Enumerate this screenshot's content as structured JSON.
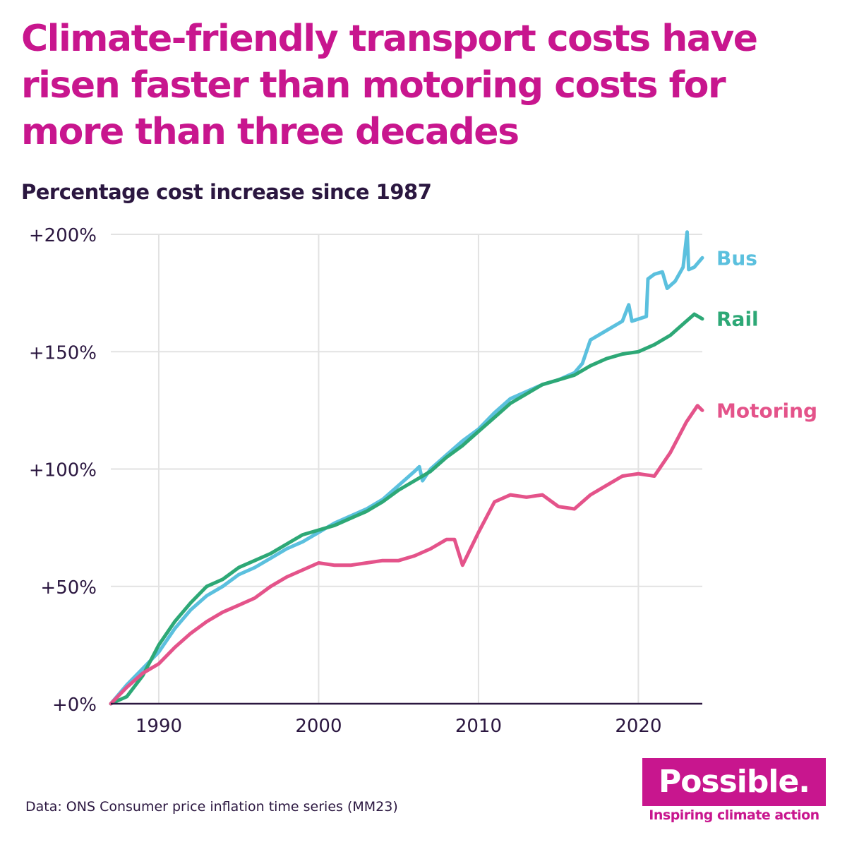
{
  "title": "Climate-friendly transport costs have risen faster than motoring costs for more than three decades",
  "subtitle": "Percentage cost increase since 1987",
  "source": "Data: ONS Consumer price inflation time series (MM23)",
  "logo": {
    "name": "Possible.",
    "tagline": "Inspiring climate action"
  },
  "colors": {
    "title": "#c8168e",
    "text": "#2b1740",
    "grid": "#e2e2e2",
    "bus": "#5bc0de",
    "rail": "#2da876",
    "motoring": "#e4538a"
  },
  "chart_data": {
    "type": "line",
    "title": "Percentage cost increase since 1987",
    "xlabel": "",
    "ylabel": "",
    "xlim": [
      1987,
      2024
    ],
    "ylim": [
      0,
      200
    ],
    "x_ticks": [
      1990,
      2000,
      2010,
      2020
    ],
    "x_tick_labels": [
      "1990",
      "2000",
      "2010",
      "2020"
    ],
    "y_ticks": [
      0,
      50,
      100,
      150,
      200
    ],
    "y_tick_labels": [
      "+0%",
      "+50%",
      "+100%",
      "+150%",
      "+200%"
    ],
    "grid": true,
    "legend": "end-of-line labels",
    "series": [
      {
        "name": "Bus",
        "color": "#5bc0de",
        "points": [
          [
            1987,
            0
          ],
          [
            1988,
            8
          ],
          [
            1989,
            15
          ],
          [
            1990,
            22
          ],
          [
            1991,
            32
          ],
          [
            1992,
            40
          ],
          [
            1993,
            46
          ],
          [
            1994,
            50
          ],
          [
            1995,
            55
          ],
          [
            1996,
            58
          ],
          [
            1997,
            62
          ],
          [
            1998,
            66
          ],
          [
            1999,
            69
          ],
          [
            2000,
            73
          ],
          [
            2001,
            77
          ],
          [
            2002,
            80
          ],
          [
            2003,
            83
          ],
          [
            2004,
            87
          ],
          [
            2005,
            93
          ],
          [
            2006,
            99
          ],
          [
            2006.3,
            101
          ],
          [
            2006.5,
            95
          ],
          [
            2007,
            100
          ],
          [
            2008,
            106
          ],
          [
            2009,
            112
          ],
          [
            2010,
            117
          ],
          [
            2011,
            124
          ],
          [
            2012,
            130
          ],
          [
            2013,
            133
          ],
          [
            2014,
            136
          ],
          [
            2015,
            138
          ],
          [
            2016,
            141
          ],
          [
            2016.5,
            145
          ],
          [
            2017,
            155
          ],
          [
            2018,
            159
          ],
          [
            2019,
            163
          ],
          [
            2019.4,
            170
          ],
          [
            2019.6,
            163
          ],
          [
            2020.5,
            165
          ],
          [
            2020.6,
            181
          ],
          [
            2021,
            183
          ],
          [
            2021.5,
            184
          ],
          [
            2021.8,
            177
          ],
          [
            2022.3,
            180
          ],
          [
            2022.8,
            186
          ],
          [
            2023.05,
            201
          ],
          [
            2023.15,
            185
          ],
          [
            2023.5,
            186
          ],
          [
            2024,
            190
          ]
        ]
      },
      {
        "name": "Rail",
        "color": "#2da876",
        "points": [
          [
            1987,
            0
          ],
          [
            1988,
            3
          ],
          [
            1989,
            12
          ],
          [
            1990,
            25
          ],
          [
            1991,
            35
          ],
          [
            1992,
            43
          ],
          [
            1993,
            50
          ],
          [
            1994,
            53
          ],
          [
            1995,
            58
          ],
          [
            1996,
            61
          ],
          [
            1997,
            64
          ],
          [
            1998,
            68
          ],
          [
            1999,
            72
          ],
          [
            2000,
            74
          ],
          [
            2001,
            76
          ],
          [
            2002,
            79
          ],
          [
            2003,
            82
          ],
          [
            2004,
            86
          ],
          [
            2005,
            91
          ],
          [
            2006,
            95
          ],
          [
            2007,
            99
          ],
          [
            2008,
            105
          ],
          [
            2009,
            110
          ],
          [
            2010,
            116
          ],
          [
            2011,
            122
          ],
          [
            2012,
            128
          ],
          [
            2013,
            132
          ],
          [
            2014,
            136
          ],
          [
            2015,
            138
          ],
          [
            2016,
            140
          ],
          [
            2017,
            144
          ],
          [
            2018,
            147
          ],
          [
            2019,
            149
          ],
          [
            2020,
            150
          ],
          [
            2021,
            153
          ],
          [
            2022,
            157
          ],
          [
            2023,
            163
          ],
          [
            2023.5,
            166
          ],
          [
            2024,
            164
          ]
        ]
      },
      {
        "name": "Motoring",
        "color": "#e4538a",
        "points": [
          [
            1987,
            0
          ],
          [
            1988,
            7
          ],
          [
            1989,
            13
          ],
          [
            1990,
            17
          ],
          [
            1991,
            24
          ],
          [
            1992,
            30
          ],
          [
            1993,
            35
          ],
          [
            1994,
            39
          ],
          [
            1995,
            42
          ],
          [
            1996,
            45
          ],
          [
            1997,
            50
          ],
          [
            1998,
            54
          ],
          [
            1999,
            57
          ],
          [
            2000,
            60
          ],
          [
            2001,
            59
          ],
          [
            2002,
            59
          ],
          [
            2003,
            60
          ],
          [
            2004,
            61
          ],
          [
            2005,
            61
          ],
          [
            2006,
            63
          ],
          [
            2007,
            66
          ],
          [
            2008,
            70
          ],
          [
            2008.5,
            70
          ],
          [
            2009,
            59
          ],
          [
            2009.5,
            66
          ],
          [
            2010,
            73
          ],
          [
            2011,
            86
          ],
          [
            2012,
            89
          ],
          [
            2013,
            88
          ],
          [
            2014,
            89
          ],
          [
            2015,
            84
          ],
          [
            2016,
            83
          ],
          [
            2017,
            89
          ],
          [
            2018,
            93
          ],
          [
            2019,
            97
          ],
          [
            2020,
            98
          ],
          [
            2021,
            97
          ],
          [
            2022,
            107
          ],
          [
            2023,
            120
          ],
          [
            2023.7,
            127
          ],
          [
            2024,
            125
          ]
        ]
      }
    ]
  }
}
